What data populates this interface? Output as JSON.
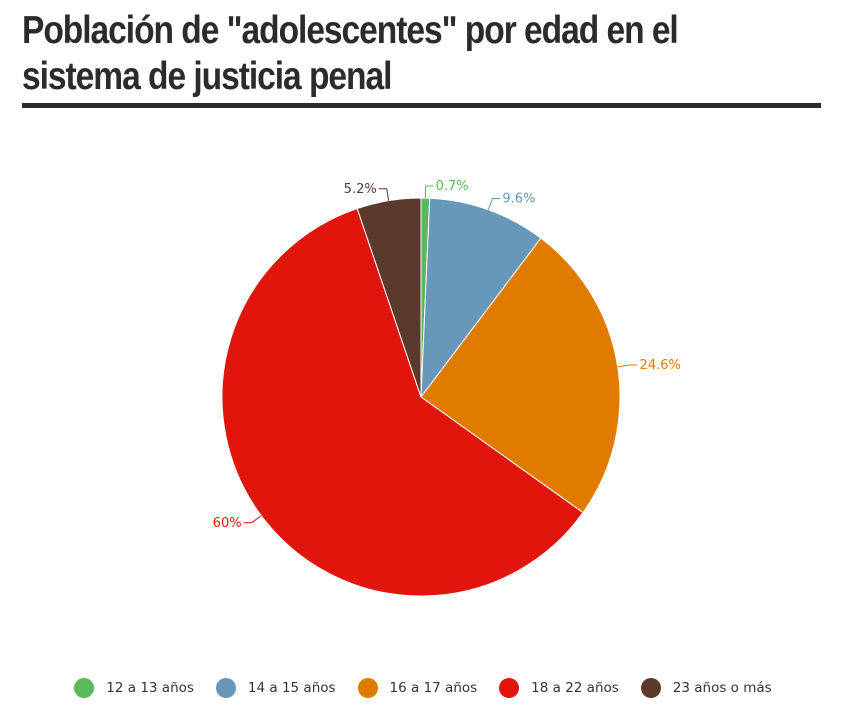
{
  "chart_data": {
    "type": "pie",
    "title": "Población de \"adolescentes\" por edad en el sistema de justicia penal",
    "start_angle_deg": 0,
    "direction": "clockwise",
    "legend_position": "bottom",
    "slices": [
      {
        "label": "12 a 13 años",
        "value": 0.7,
        "display": "0.7%",
        "color": "#5cb85c"
      },
      {
        "label": "14 a 15 años",
        "value": 9.6,
        "display": "9.6%",
        "color": "#6797b9"
      },
      {
        "label": "16 a 17 años",
        "value": 24.6,
        "display": "24.6%",
        "color": "#e07b00"
      },
      {
        "label": "18 a 22 años",
        "value": 60,
        "display": "60%",
        "color": "#e0160c"
      },
      {
        "label": "23 años o más",
        "value": 5.2,
        "display": "5.2%",
        "color": "#5a3a2c"
      }
    ]
  }
}
